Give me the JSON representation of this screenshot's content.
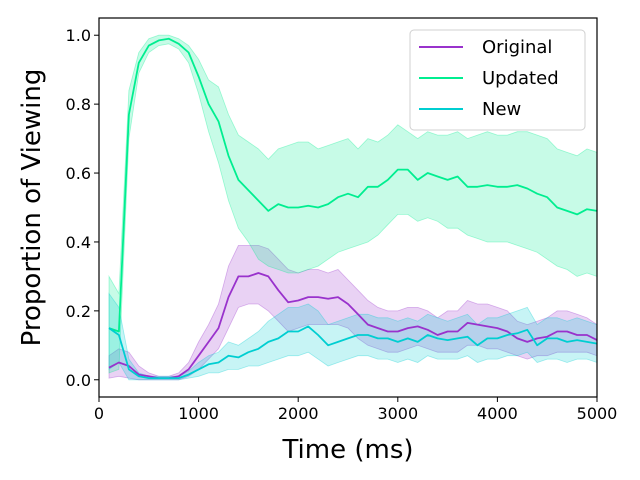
{
  "chart_data": {
    "type": "line",
    "xlabel": "Time (ms)",
    "ylabel": "Proportion of Viewing",
    "xlim": [
      0,
      5000
    ],
    "ylim": [
      -0.05,
      1.05
    ],
    "xticks": [
      0,
      1000,
      2000,
      3000,
      4000,
      5000
    ],
    "yticks": [
      0.0,
      0.2,
      0.4,
      0.6,
      0.8,
      1.0
    ],
    "xtick_labels": [
      "0",
      "1000",
      "2000",
      "3000",
      "4000",
      "5000"
    ],
    "ytick_labels": [
      "0.0",
      "0.2",
      "0.4",
      "0.6",
      "0.8",
      "1.0"
    ],
    "grid": false,
    "legend_position": "top-right",
    "x": [
      100,
      200,
      300,
      400,
      500,
      600,
      700,
      800,
      900,
      1000,
      1100,
      1200,
      1300,
      1400,
      1500,
      1600,
      1700,
      1800,
      1900,
      2000,
      2100,
      2200,
      2300,
      2400,
      2500,
      2600,
      2700,
      2800,
      2900,
      3000,
      3100,
      3200,
      3300,
      3400,
      3500,
      3600,
      3700,
      3800,
      3900,
      4000,
      4100,
      4200,
      4300,
      4400,
      4500,
      4600,
      4700,
      4800,
      4900,
      5000
    ],
    "series": [
      {
        "name": "Original",
        "color": "#9932CC",
        "values": [
          0.035,
          0.05,
          0.04,
          0.015,
          0.01,
          0.005,
          0.005,
          0.01,
          0.03,
          0.07,
          0.11,
          0.15,
          0.24,
          0.3,
          0.3,
          0.31,
          0.3,
          0.26,
          0.225,
          0.23,
          0.24,
          0.24,
          0.235,
          0.24,
          0.22,
          0.19,
          0.16,
          0.15,
          0.14,
          0.14,
          0.15,
          0.155,
          0.145,
          0.13,
          0.14,
          0.14,
          0.165,
          0.16,
          0.155,
          0.15,
          0.14,
          0.12,
          0.11,
          0.12,
          0.125,
          0.14,
          0.14,
          0.13,
          0.13,
          0.115
        ],
        "lower": [
          0.005,
          0.01,
          0.005,
          0.0,
          0.0,
          0.0,
          0.0,
          0.0,
          0.01,
          0.03,
          0.06,
          0.09,
          0.15,
          0.21,
          0.22,
          0.22,
          0.2,
          0.17,
          0.14,
          0.15,
          0.16,
          0.16,
          0.16,
          0.16,
          0.15,
          0.12,
          0.1,
          0.09,
          0.08,
          0.08,
          0.09,
          0.1,
          0.09,
          0.08,
          0.08,
          0.08,
          0.1,
          0.1,
          0.09,
          0.09,
          0.08,
          0.07,
          0.06,
          0.07,
          0.07,
          0.08,
          0.08,
          0.08,
          0.08,
          0.07
        ],
        "upper": [
          0.07,
          0.09,
          0.08,
          0.04,
          0.02,
          0.01,
          0.01,
          0.02,
          0.05,
          0.11,
          0.16,
          0.22,
          0.33,
          0.39,
          0.39,
          0.39,
          0.38,
          0.35,
          0.32,
          0.31,
          0.32,
          0.32,
          0.31,
          0.32,
          0.29,
          0.26,
          0.23,
          0.21,
          0.2,
          0.2,
          0.21,
          0.21,
          0.2,
          0.18,
          0.2,
          0.2,
          0.23,
          0.22,
          0.22,
          0.21,
          0.2,
          0.17,
          0.16,
          0.17,
          0.18,
          0.2,
          0.2,
          0.19,
          0.18,
          0.16
        ]
      },
      {
        "name": "Updated",
        "color": "#00EE90",
        "values": [
          0.15,
          0.14,
          0.77,
          0.92,
          0.97,
          0.985,
          0.99,
          0.975,
          0.95,
          0.88,
          0.8,
          0.75,
          0.65,
          0.58,
          0.55,
          0.52,
          0.49,
          0.51,
          0.5,
          0.5,
          0.505,
          0.5,
          0.51,
          0.53,
          0.54,
          0.53,
          0.56,
          0.56,
          0.58,
          0.61,
          0.61,
          0.58,
          0.6,
          0.59,
          0.58,
          0.59,
          0.56,
          0.56,
          0.565,
          0.56,
          0.56,
          0.565,
          0.555,
          0.54,
          0.53,
          0.5,
          0.49,
          0.48,
          0.495,
          0.49
        ],
        "lower": [
          0.02,
          0.03,
          0.7,
          0.89,
          0.95,
          0.97,
          0.975,
          0.96,
          0.92,
          0.83,
          0.72,
          0.63,
          0.52,
          0.44,
          0.4,
          0.35,
          0.33,
          0.32,
          0.31,
          0.31,
          0.32,
          0.33,
          0.35,
          0.37,
          0.38,
          0.39,
          0.4,
          0.42,
          0.45,
          0.48,
          0.48,
          0.46,
          0.47,
          0.46,
          0.44,
          0.44,
          0.42,
          0.41,
          0.4,
          0.4,
          0.4,
          0.39,
          0.38,
          0.37,
          0.35,
          0.33,
          0.32,
          0.3,
          0.31,
          0.3
        ],
        "upper": [
          0.3,
          0.25,
          0.84,
          0.95,
          0.99,
          1.0,
          1.0,
          0.99,
          0.97,
          0.93,
          0.87,
          0.85,
          0.77,
          0.71,
          0.69,
          0.67,
          0.64,
          0.67,
          0.68,
          0.69,
          0.69,
          0.67,
          0.68,
          0.69,
          0.7,
          0.67,
          0.7,
          0.69,
          0.71,
          0.74,
          0.72,
          0.7,
          0.72,
          0.71,
          0.71,
          0.72,
          0.7,
          0.71,
          0.72,
          0.71,
          0.71,
          0.72,
          0.72,
          0.71,
          0.7,
          0.67,
          0.66,
          0.65,
          0.67,
          0.66
        ]
      },
      {
        "name": "New",
        "color": "#00CED1",
        "values": [
          0.15,
          0.13,
          0.03,
          0.01,
          0.005,
          0.005,
          0.005,
          0.005,
          0.015,
          0.03,
          0.045,
          0.05,
          0.07,
          0.065,
          0.08,
          0.09,
          0.11,
          0.12,
          0.14,
          0.14,
          0.155,
          0.13,
          0.1,
          0.11,
          0.12,
          0.13,
          0.13,
          0.12,
          0.12,
          0.11,
          0.12,
          0.11,
          0.13,
          0.12,
          0.115,
          0.12,
          0.125,
          0.1,
          0.12,
          0.12,
          0.13,
          0.135,
          0.145,
          0.1,
          0.12,
          0.12,
          0.11,
          0.115,
          0.11,
          0.105
        ],
        "lower": [
          0.03,
          0.05,
          0.0,
          0.0,
          0.0,
          0.0,
          0.0,
          0.0,
          0.005,
          0.01,
          0.02,
          0.02,
          0.03,
          0.03,
          0.04,
          0.04,
          0.05,
          0.06,
          0.07,
          0.07,
          0.08,
          0.06,
          0.04,
          0.05,
          0.06,
          0.07,
          0.07,
          0.06,
          0.06,
          0.05,
          0.06,
          0.05,
          0.07,
          0.06,
          0.06,
          0.06,
          0.07,
          0.05,
          0.06,
          0.06,
          0.07,
          0.07,
          0.08,
          0.05,
          0.06,
          0.06,
          0.05,
          0.06,
          0.06,
          0.05
        ],
        "upper": [
          0.25,
          0.21,
          0.06,
          0.02,
          0.01,
          0.01,
          0.01,
          0.01,
          0.025,
          0.05,
          0.07,
          0.08,
          0.11,
          0.1,
          0.12,
          0.14,
          0.17,
          0.19,
          0.21,
          0.21,
          0.22,
          0.2,
          0.16,
          0.17,
          0.18,
          0.19,
          0.19,
          0.18,
          0.18,
          0.17,
          0.18,
          0.17,
          0.19,
          0.18,
          0.17,
          0.18,
          0.19,
          0.16,
          0.18,
          0.18,
          0.19,
          0.2,
          0.21,
          0.16,
          0.18,
          0.18,
          0.17,
          0.18,
          0.17,
          0.16
        ]
      }
    ]
  }
}
